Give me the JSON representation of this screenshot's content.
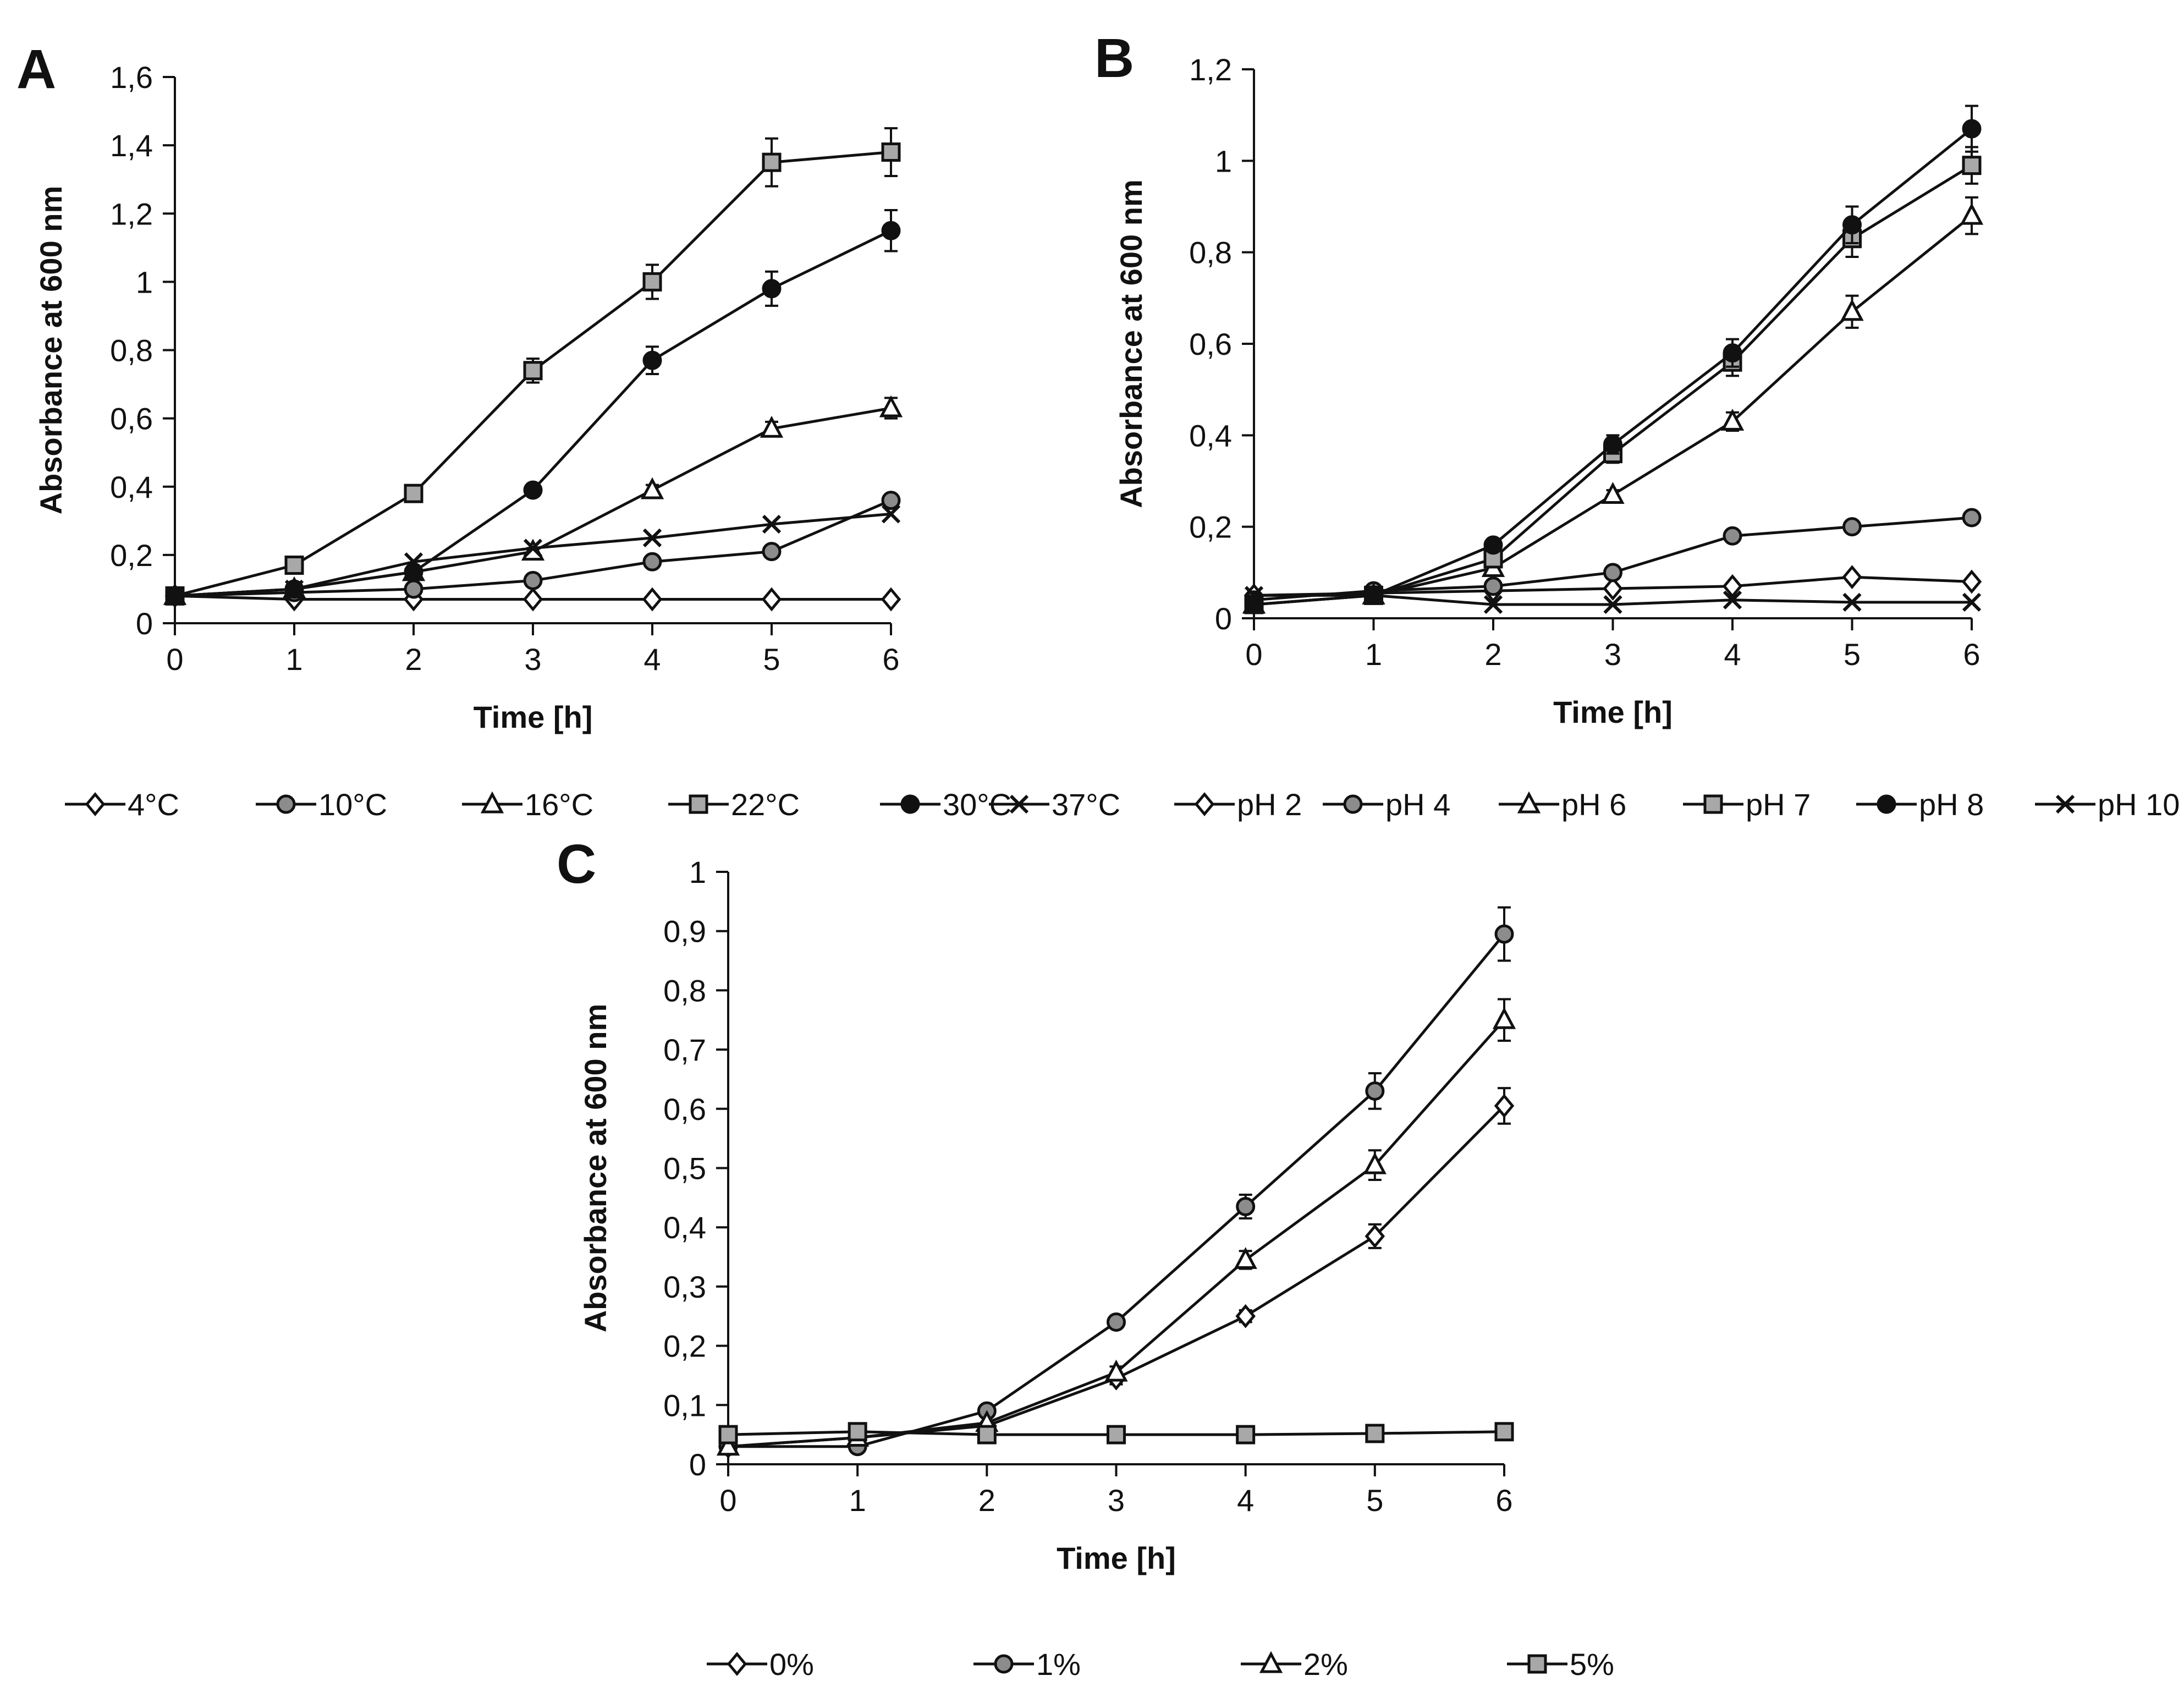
{
  "colors": {
    "axis": "#111111",
    "line": "#111111",
    "grey_fill": "#8c8c8c",
    "lightgrey_fill": "#a8a8a8",
    "white_fill": "#ffffff"
  },
  "chart_data": [
    {
      "panel": "A",
      "type": "line",
      "xlabel": "Time [h]",
      "ylabel": "Absorbance at 600 nm",
      "x": [
        0,
        1,
        2,
        3,
        4,
        5,
        6
      ],
      "x_tick_labels": [
        "0",
        "1",
        "2",
        "3",
        "4",
        "5",
        "6"
      ],
      "ylim": [
        0,
        1.6
      ],
      "y_ticks": [
        0,
        0.2,
        0.4,
        0.6,
        0.8,
        1,
        1.2,
        1.4,
        1.6
      ],
      "y_tick_labels": [
        "0",
        "0,2",
        "0,4",
        "0,6",
        "0,8",
        "1",
        "1,2",
        "1,4",
        "1,6"
      ],
      "series": [
        {
          "name": "4°C",
          "marker": "diamond-open",
          "values": [
            0.08,
            0.07,
            0.07,
            0.07,
            0.07,
            0.07,
            0.07
          ],
          "errors": [
            0,
            0,
            0,
            0,
            0,
            0,
            0
          ]
        },
        {
          "name": "10°C",
          "marker": "circle-grey",
          "values": [
            0.08,
            0.09,
            0.1,
            0.125,
            0.18,
            0.21,
            0.36
          ],
          "errors": [
            0,
            0,
            0,
            0.01,
            0.01,
            0.01,
            0.015
          ]
        },
        {
          "name": "16°C",
          "marker": "triangle-open",
          "values": [
            0.08,
            0.1,
            0.15,
            0.21,
            0.39,
            0.57,
            0.63
          ],
          "errors": [
            0,
            0,
            0.01,
            0.01,
            0.015,
            0.02,
            0.03
          ]
        },
        {
          "name": "22°C",
          "marker": "square-grey",
          "values": [
            0.08,
            0.17,
            0.38,
            0.74,
            1.0,
            1.35,
            1.38
          ],
          "errors": [
            0,
            0,
            0.01,
            0.035,
            0.05,
            0.07,
            0.07
          ]
        },
        {
          "name": "30°C",
          "marker": "circle-black",
          "values": [
            0.08,
            0.1,
            0.15,
            0.39,
            0.77,
            0.98,
            1.15
          ],
          "errors": [
            0,
            0,
            0.01,
            0.015,
            0.04,
            0.05,
            0.06
          ]
        },
        {
          "name": "37°C",
          "marker": "cross",
          "values": [
            0.08,
            0.1,
            0.18,
            0.22,
            0.25,
            0.29,
            0.32
          ],
          "errors": [
            0,
            0,
            0,
            0,
            0,
            0,
            0
          ]
        }
      ]
    },
    {
      "panel": "B",
      "type": "line",
      "xlabel": "Time [h]",
      "ylabel": "Absorbance at 600 nm",
      "x": [
        0,
        1,
        2,
        3,
        4,
        5,
        6
      ],
      "x_tick_labels": [
        "0",
        "1",
        "2",
        "3",
        "4",
        "5",
        "6"
      ],
      "ylim": [
        0,
        1.2
      ],
      "y_ticks": [
        0,
        0.2,
        0.4,
        0.6,
        0.8,
        1,
        1.2
      ],
      "y_tick_labels": [
        "0",
        "0,2",
        "0,4",
        "0,6",
        "0,8",
        "1",
        "1,2"
      ],
      "series": [
        {
          "name": "pH 2",
          "marker": "diamond-open",
          "values": [
            0.05,
            0.055,
            0.06,
            0.065,
            0.07,
            0.09,
            0.08
          ],
          "errors": [
            0,
            0,
            0,
            0,
            0,
            0,
            0
          ]
        },
        {
          "name": "pH 4",
          "marker": "circle-grey",
          "values": [
            0.04,
            0.06,
            0.07,
            0.1,
            0.18,
            0.2,
            0.22
          ],
          "errors": [
            0,
            0,
            0,
            0,
            0,
            0,
            0
          ]
        },
        {
          "name": "pH 6",
          "marker": "triangle-open",
          "values": [
            0.03,
            0.05,
            0.11,
            0.27,
            0.43,
            0.67,
            0.88
          ],
          "errors": [
            0,
            0,
            0.01,
            0.01,
            0.02,
            0.035,
            0.04
          ]
        },
        {
          "name": "pH 7",
          "marker": "square-grey",
          "values": [
            0.03,
            0.05,
            0.13,
            0.36,
            0.56,
            0.83,
            0.99
          ],
          "errors": [
            0,
            0,
            0.01,
            0.02,
            0.03,
            0.04,
            0.04
          ]
        },
        {
          "name": "pH 8",
          "marker": "circle-black",
          "values": [
            0.03,
            0.05,
            0.16,
            0.38,
            0.58,
            0.86,
            1.07
          ],
          "errors": [
            0,
            0,
            0.01,
            0.02,
            0.03,
            0.04,
            0.05
          ]
        },
        {
          "name": "pH 10",
          "marker": "cross",
          "values": [
            0.05,
            0.05,
            0.03,
            0.03,
            0.04,
            0.035,
            0.035
          ],
          "errors": [
            0,
            0,
            0,
            0,
            0,
            0,
            0
          ]
        }
      ]
    },
    {
      "panel": "C",
      "type": "line",
      "xlabel": "Time [h]",
      "ylabel": "Absorbance at 600 nm",
      "x": [
        0,
        1,
        2,
        3,
        4,
        5,
        6
      ],
      "x_tick_labels": [
        "0",
        "1",
        "2",
        "3",
        "4",
        "5",
        "6"
      ],
      "ylim": [
        0,
        1
      ],
      "y_ticks": [
        0,
        0.1,
        0.2,
        0.3,
        0.4,
        0.5,
        0.6,
        0.7,
        0.8,
        0.9,
        1
      ],
      "y_tick_labels": [
        "0",
        "0,1",
        "0,2",
        "0,3",
        "0,4",
        "0,5",
        "0,6",
        "0,7",
        "0,8",
        "0,9",
        "1"
      ],
      "series": [
        {
          "name": "0%",
          "marker": "diamond-open",
          "values": [
            0.03,
            0.045,
            0.065,
            0.145,
            0.25,
            0.385,
            0.605
          ],
          "errors": [
            0,
            0,
            0,
            0.01,
            0.01,
            0.02,
            0.03
          ]
        },
        {
          "name": "1%",
          "marker": "circle-grey",
          "values": [
            0.03,
            0.03,
            0.09,
            0.24,
            0.435,
            0.63,
            0.895
          ],
          "errors": [
            0,
            0,
            0,
            0.01,
            0.02,
            0.03,
            0.045
          ]
        },
        {
          "name": "2%",
          "marker": "triangle-open",
          "values": [
            0.03,
            0.045,
            0.07,
            0.155,
            0.345,
            0.505,
            0.75
          ],
          "errors": [
            0,
            0,
            0,
            0.01,
            0.015,
            0.025,
            0.035
          ]
        },
        {
          "name": "5%",
          "marker": "square-grey",
          "values": [
            0.05,
            0.055,
            0.05,
            0.05,
            0.05,
            0.052,
            0.055
          ],
          "errors": [
            0,
            0,
            0,
            0,
            0,
            0,
            0
          ]
        }
      ]
    }
  ]
}
